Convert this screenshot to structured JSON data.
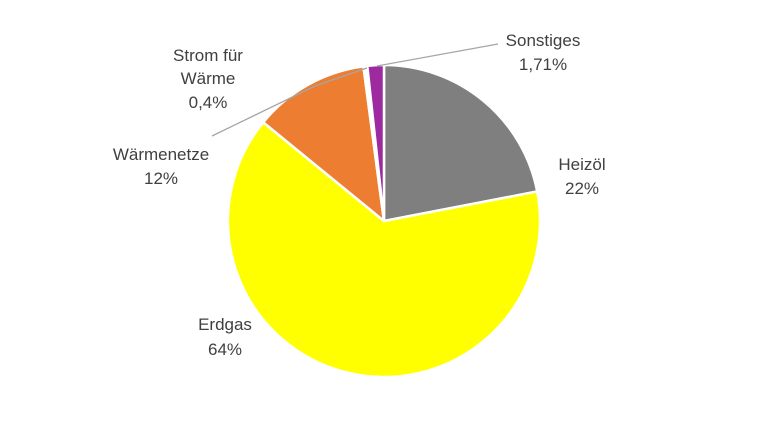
{
  "chart_data": {
    "type": "pie",
    "slices": [
      {
        "label": "Heizöl",
        "value": 22,
        "value_label": "22%",
        "color": "#7f7f7f"
      },
      {
        "label": "Erdgas",
        "value": 64,
        "value_label": "64%",
        "color": "#ffff00"
      },
      {
        "label": "Wärmenetze",
        "value": 12,
        "value_label": "12%",
        "color": "#ed7d31"
      },
      {
        "label": "Strom für Wärme",
        "value": 0.4,
        "value_label": "0,4%",
        "color": "#ffffff"
      },
      {
        "label": "Sonstiges",
        "value": 1.71,
        "value_label": "1,71%",
        "color": "#9e2a9f"
      }
    ],
    "slice_border_color": "#ffffff",
    "leader_line_color": "#a6a6a6",
    "legend": "none"
  }
}
